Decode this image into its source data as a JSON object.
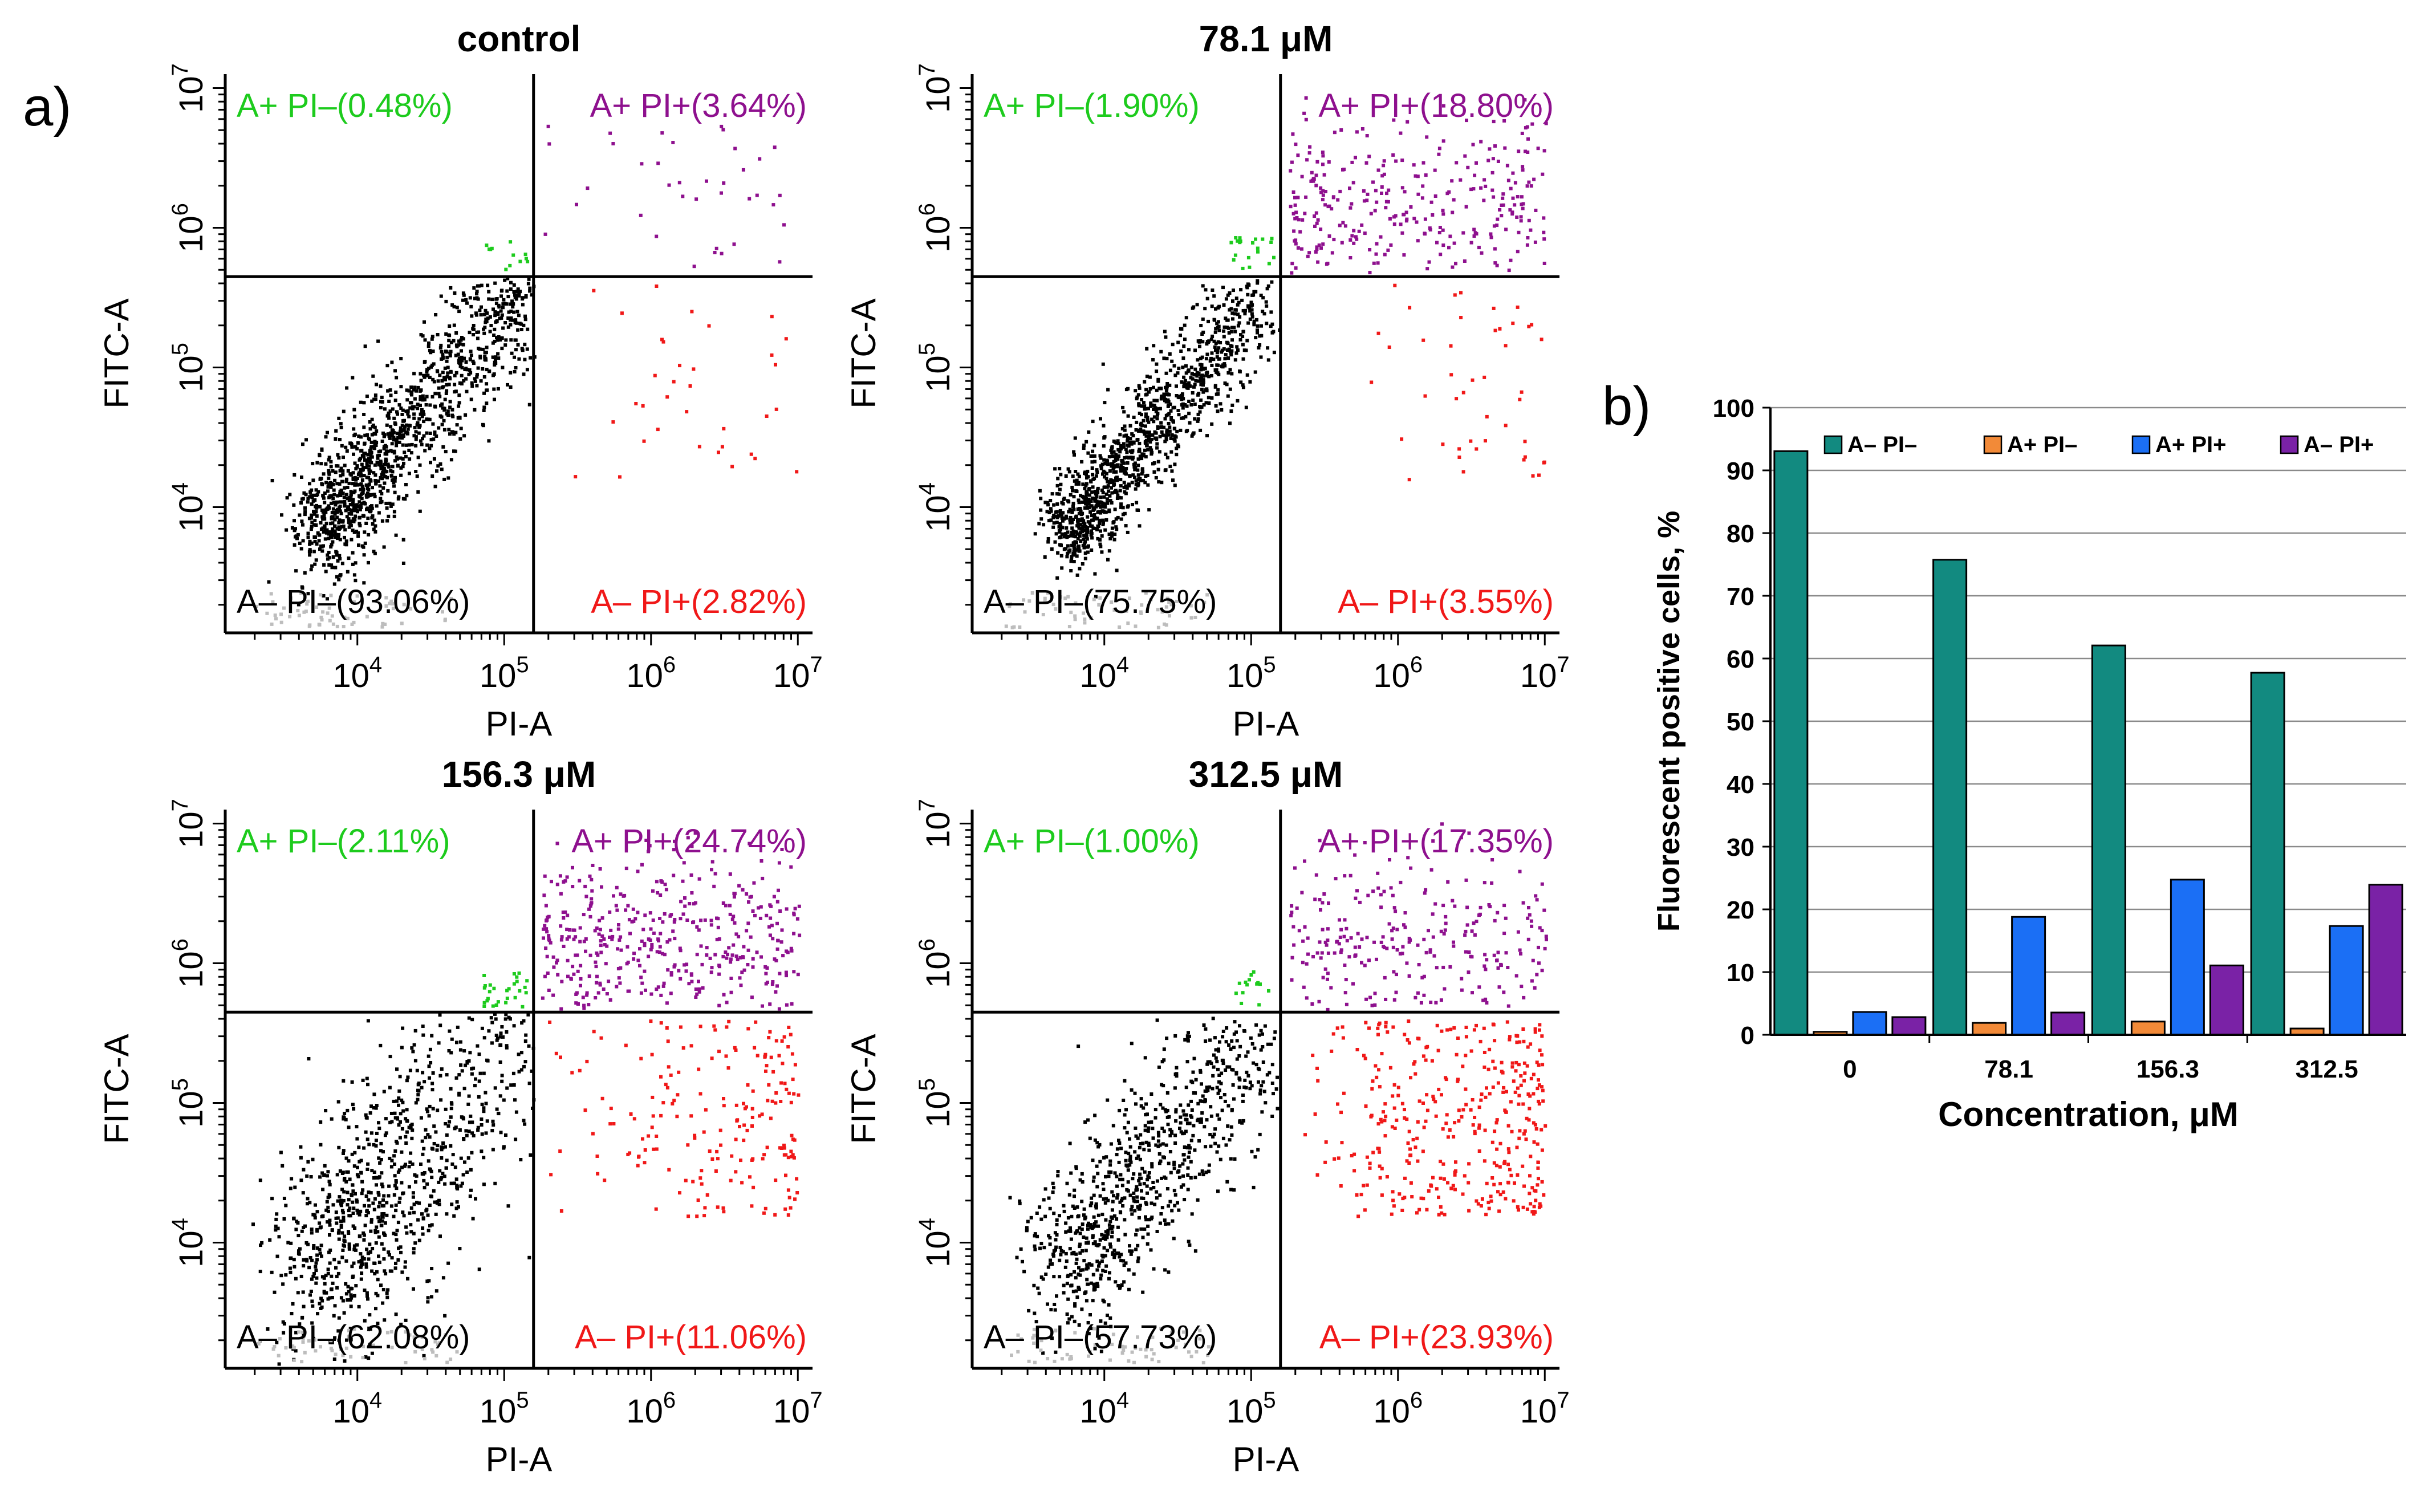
{
  "panel_labels": {
    "a": "a)",
    "b": "b)"
  },
  "colors": {
    "green": "#1DCB1D",
    "purple": "#8E108E",
    "red": "#F01818",
    "black": "#000000",
    "teal": "#128A80",
    "orange": "#F28A38",
    "blue": "#1B6FF5",
    "violet": "#7A22A6"
  },
  "chart_data": [
    {
      "type": "scatter",
      "id": "control",
      "title": "control",
      "xlabel": "PI-A",
      "ylabel": "FITC-A",
      "x_ticks": [
        "10^4",
        "10^5",
        "10^6",
        "10^7"
      ],
      "y_ticks": [
        "10^4",
        "10^5",
        "10^6",
        "10^7"
      ],
      "xlim_log10": [
        3.1,
        7.1
      ],
      "ylim_log10": [
        3.1,
        7.1
      ],
      "gate_log10": {
        "x": 5.2,
        "y": 5.65
      },
      "quadrants": {
        "upper_left": "A+ PI–(0.48%)",
        "upper_right": "A+ PI+(3.64%)",
        "lower_left": "A– PI–(93.06%)",
        "lower_right": "A– PI+(2.82%)"
      },
      "scatter_profile": {
        "black_spread": 0.22,
        "purple_n": 45,
        "red_n": 35,
        "black_n": 1300,
        "green_n": 12
      }
    },
    {
      "type": "scatter",
      "id": "c78",
      "title": "78.1 μM",
      "xlabel": "PI-A",
      "ylabel": "FITC-A",
      "x_ticks": [
        "10^4",
        "10^5",
        "10^6",
        "10^7"
      ],
      "y_ticks": [
        "10^4",
        "10^5",
        "10^6",
        "10^7"
      ],
      "xlim_log10": [
        3.1,
        7.1
      ],
      "ylim_log10": [
        3.1,
        7.1
      ],
      "gate_log10": {
        "x": 5.2,
        "y": 5.65
      },
      "quadrants": {
        "upper_left": "A+ PI–(1.90%)",
        "upper_right": "A+ PI+(18.80%)",
        "lower_left": "A– PI–(75.75%)",
        "lower_right": "A– PI+(3.55%)"
      },
      "scatter_profile": {
        "black_spread": 0.18,
        "purple_n": 330,
        "red_n": 45,
        "black_n": 1200,
        "green_n": 20
      }
    },
    {
      "type": "scatter",
      "id": "c156",
      "title": "156.3 μM",
      "xlabel": "PI-A",
      "ylabel": "FITC-A",
      "x_ticks": [
        "10^4",
        "10^5",
        "10^6",
        "10^7"
      ],
      "y_ticks": [
        "10^4",
        "10^5",
        "10^6",
        "10^7"
      ],
      "xlim_log10": [
        3.1,
        7.1
      ],
      "ylim_log10": [
        3.1,
        7.1
      ],
      "gate_log10": {
        "x": 5.2,
        "y": 5.65
      },
      "quadrants": {
        "upper_left": "A+ PI–(2.11%)",
        "upper_right": "A+ PI+(24.74%)",
        "lower_left": "A– PI–(62.08%)",
        "lower_right": "A– PI+(11.06%)"
      },
      "scatter_profile": {
        "black_spread": 0.4,
        "purple_n": 450,
        "red_n": 200,
        "black_n": 1000,
        "green_n": 28
      }
    },
    {
      "type": "scatter",
      "id": "c312",
      "title": "312.5 μM",
      "xlabel": "PI-A",
      "ylabel": "FITC-A",
      "x_ticks": [
        "10^4",
        "10^5",
        "10^6",
        "10^7"
      ],
      "y_ticks": [
        "10^4",
        "10^5",
        "10^6",
        "10^7"
      ],
      "xlim_log10": [
        3.1,
        7.1
      ],
      "ylim_log10": [
        3.1,
        7.1
      ],
      "gate_log10": {
        "x": 5.2,
        "y": 5.65
      },
      "quadrants": {
        "upper_left": "A+ PI–(1.00%)",
        "upper_right": "A+ PI+(17.35%)",
        "lower_left": "A– PI–(57.73%)",
        "lower_right": "A– PI+(23.93%)"
      },
      "scatter_profile": {
        "black_spread": 0.3,
        "purple_n": 280,
        "red_n": 380,
        "black_n": 850,
        "green_n": 14
      }
    },
    {
      "type": "bar",
      "id": "summary",
      "ylabel": "Fluorescent positive cells, %",
      "xlabel": "Concentration, μM",
      "categories": [
        "0",
        "78.1",
        "156.3",
        "312.5"
      ],
      "ylim": [
        0,
        100
      ],
      "yticks": [
        0,
        10,
        20,
        30,
        40,
        50,
        60,
        70,
        80,
        90,
        100
      ],
      "grid": true,
      "legend_position": "top",
      "series": [
        {
          "name": "A– PI–",
          "values": [
            93.06,
            75.75,
            62.08,
            57.73
          ]
        },
        {
          "name": "A+ PI–",
          "values": [
            0.48,
            1.9,
            2.11,
            1.0
          ]
        },
        {
          "name": "A+ PI+",
          "values": [
            3.64,
            18.8,
            24.74,
            17.35
          ]
        },
        {
          "name": "A– PI+",
          "values": [
            2.82,
            3.55,
            11.06,
            23.93
          ]
        }
      ]
    }
  ]
}
